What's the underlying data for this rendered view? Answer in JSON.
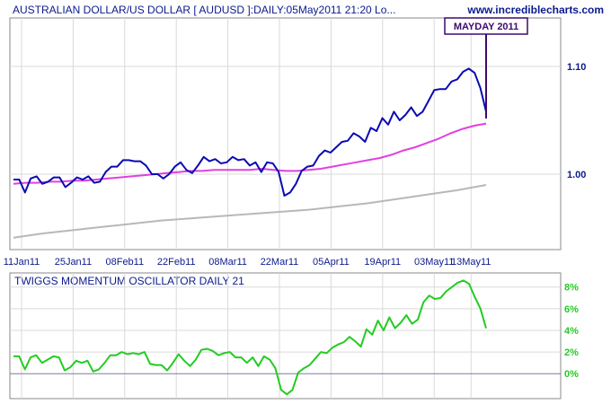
{
  "header": {
    "title": "AUSTRALIAN DOLLAR/US DOLLAR [ AUDUSD ]:DAILY:05May2011 21:20 Lo...",
    "site": "www.incrediblecharts.com"
  },
  "colors": {
    "price": "#0a0ab4",
    "ma_short": "#e040e0",
    "ma_long": "#b8b8b8",
    "oscillator": "#22cc22",
    "grid": "#d9d9d9",
    "text": "#0b1a8c",
    "callout": "#3c0a6e"
  },
  "chart_data": [
    {
      "type": "line",
      "title": "AUSTRALIAN DOLLAR/US DOLLAR [ AUDUSD ]:DAILY:05May2011 21:20 Lo...",
      "x_tick_labels": [
        "11Jan11",
        "25Jan11",
        "08Feb11",
        "22Feb11",
        "08Mar11",
        "22Mar11",
        "05Apr11",
        "19Apr11",
        "03May11",
        "13May11"
      ],
      "y_tick_labels": [
        "1.10",
        "1.00"
      ],
      "ylim": [
        0.93,
        1.145
      ],
      "grid": true,
      "annotation": "MAYDAY 2011",
      "series": [
        {
          "key": "price",
          "values": [
            0.995,
            0.995,
            0.983,
            0.996,
            0.998,
            0.991,
            0.993,
            0.997,
            0.997,
            0.988,
            0.992,
            0.997,
            0.995,
            0.998,
            0.992,
            0.993,
            1.002,
            1.007,
            1.007,
            1.013,
            1.013,
            1.012,
            1.012,
            1.008,
            1.0,
            1.0,
            0.996,
            1.0,
            1.007,
            1.011,
            1.004,
            1.001,
            1.008,
            1.016,
            1.012,
            1.014,
            1.01,
            1.011,
            1.016,
            1.013,
            1.014,
            1.008,
            1.011,
            1.002,
            1.011,
            1.01,
            1.002,
            0.98,
            0.983,
            0.991,
            1.003,
            1.007,
            1.008,
            1.017,
            1.022,
            1.02,
            1.025,
            1.03,
            1.031,
            1.038,
            1.035,
            1.03,
            1.043,
            1.04,
            1.052,
            1.046,
            1.058,
            1.05,
            1.055,
            1.062,
            1.054,
            1.058,
            1.068,
            1.078,
            1.079,
            1.079,
            1.086,
            1.088,
            1.095,
            1.098,
            1.094,
            1.08,
            1.058
          ]
        },
        {
          "key": "ma_short",
          "values": [
            0.991,
            0.992,
            0.992,
            0.993,
            0.993,
            0.994,
            0.994,
            0.995,
            0.996,
            0.997,
            0.998,
            0.999,
            1.0,
            1.001,
            1.002,
            1.003,
            1.003,
            1.004,
            1.004,
            1.004,
            1.004,
            1.005,
            1.004,
            1.003,
            1.003,
            1.004,
            1.005,
            1.007,
            1.009,
            1.011,
            1.013,
            1.015,
            1.018,
            1.022,
            1.025,
            1.029,
            1.033,
            1.038,
            1.042,
            1.045,
            1.047
          ]
        },
        {
          "key": "ma_long",
          "values": [
            0.941,
            0.945,
            0.948,
            0.951,
            0.954,
            0.957,
            0.959,
            0.961,
            0.963,
            0.965,
            0.967,
            0.97,
            0.973,
            0.977,
            0.981,
            0.985,
            0.99
          ]
        }
      ]
    },
    {
      "type": "line",
      "title": "TWIGGS MOMENTUM OSCILLATOR DAILY 21",
      "y_tick_labels": [
        "8%",
        "6%",
        "4%",
        "2%",
        "0%"
      ],
      "ylim": [
        -2.3,
        9.3
      ],
      "grid": true,
      "series": [
        {
          "key": "oscillator",
          "values": [
            1.6,
            1.6,
            0.4,
            1.5,
            1.7,
            1.0,
            1.3,
            1.6,
            1.5,
            0.3,
            0.6,
            1.2,
            1.0,
            1.2,
            0.2,
            0.4,
            1.0,
            1.7,
            1.7,
            2.0,
            1.8,
            1.9,
            1.8,
            2.0,
            0.9,
            0.8,
            0.8,
            0.3,
            1.0,
            1.8,
            1.2,
            0.7,
            1.3,
            2.2,
            2.3,
            2.1,
            1.7,
            1.9,
            2.0,
            1.5,
            1.5,
            1.0,
            1.5,
            0.7,
            1.6,
            1.3,
            0.5,
            -1.5,
            -1.9,
            -1.5,
            0.1,
            0.5,
            0.8,
            1.4,
            2.0,
            1.9,
            2.4,
            2.7,
            2.9,
            3.4,
            3.0,
            2.5,
            4.1,
            3.6,
            4.9,
            4.0,
            5.2,
            4.2,
            4.7,
            5.4,
            4.6,
            5.0,
            6.6,
            7.2,
            6.9,
            7.0,
            7.6,
            8.0,
            8.4,
            8.6,
            8.3,
            7.1,
            6.0,
            4.2
          ]
        }
      ]
    }
  ]
}
